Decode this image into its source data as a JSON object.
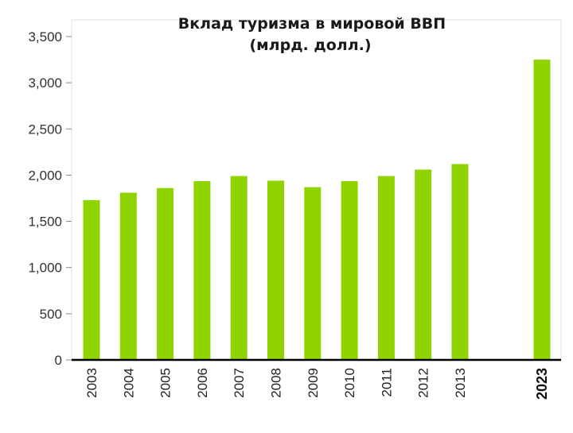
{
  "chart_data": {
    "type": "bar",
    "title": "Вклад туризма в мировой ВВП",
    "subtitle": "(млрд. долл.)",
    "xlabel": "",
    "ylabel": "",
    "categories": [
      "2003",
      "2004",
      "2005",
      "2006",
      "2007",
      "2008",
      "2009",
      "2010",
      "2011",
      "2012",
      "2013",
      "2023"
    ],
    "values": [
      1730,
      1810,
      1860,
      1935,
      1990,
      1940,
      1870,
      1935,
      1990,
      2060,
      2120,
      3250
    ],
    "ylim": [
      0,
      3500
    ],
    "yticks": [
      0,
      500,
      1000,
      1500,
      2000,
      2500,
      3000,
      3500
    ],
    "ytick_labels": [
      "0",
      "500",
      "1,000",
      "1,500",
      "2,000",
      "2,500",
      "3,000",
      "3,500"
    ],
    "grid": false,
    "legend": "none",
    "bar_color": "#8fd400",
    "gap_before_last": true
  }
}
